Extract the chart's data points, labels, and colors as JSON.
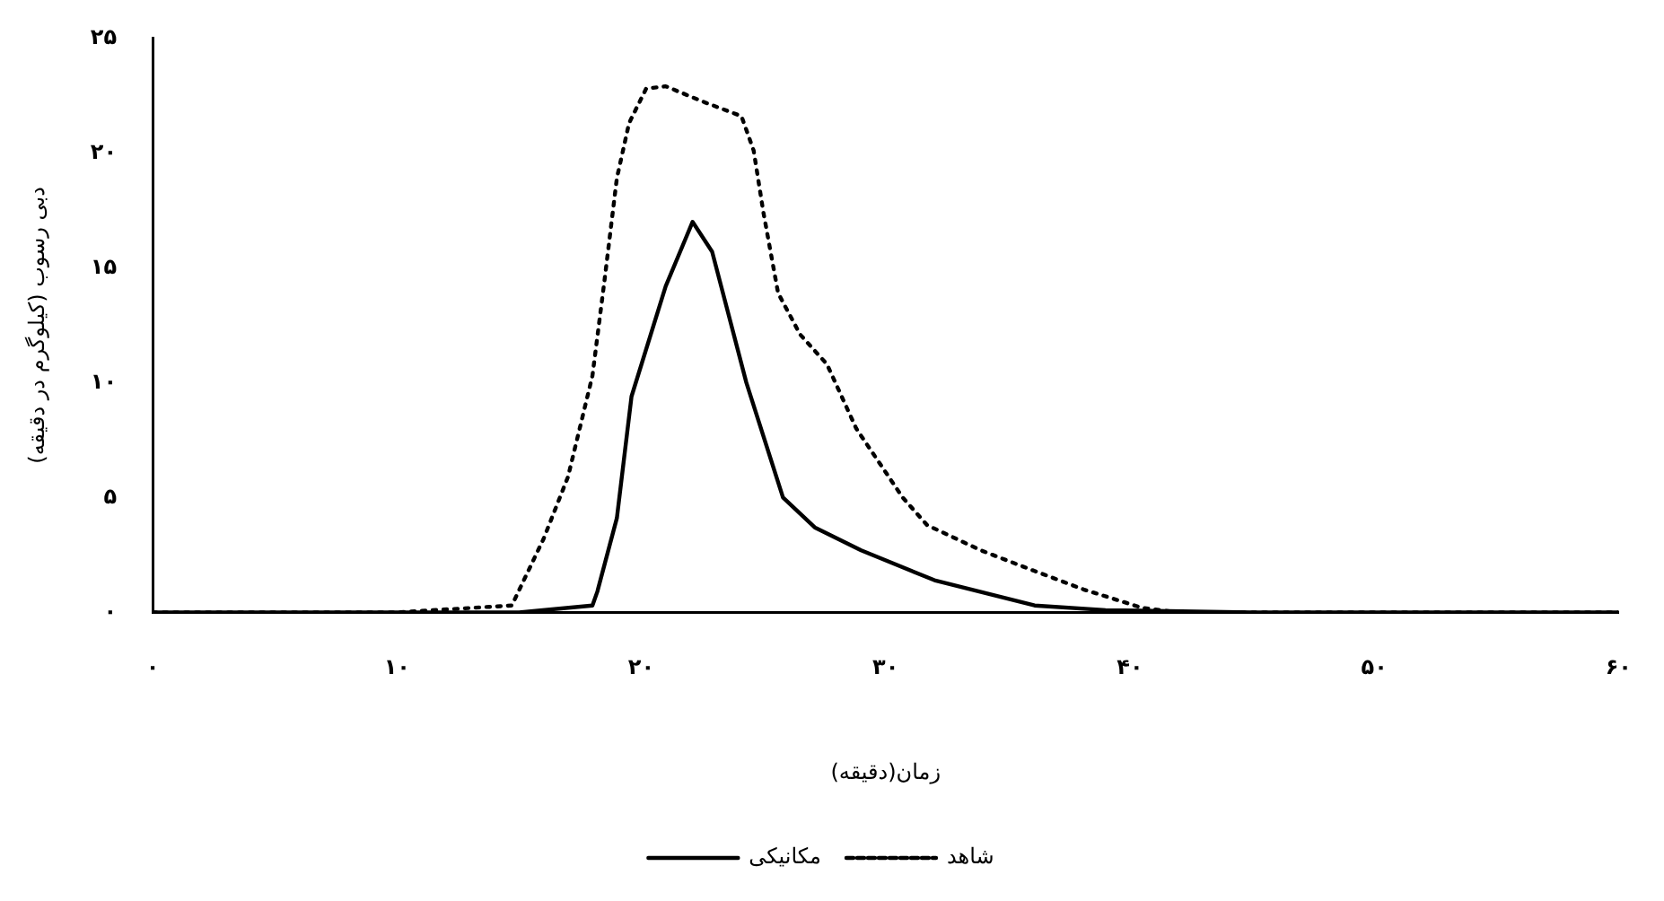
{
  "chart_data": {
    "type": "line",
    "xlabel": "زمان(دقیقه)",
    "ylabel": "دبی رسوب (کیلوگرم در دقیقه)",
    "xlim": [
      0,
      60
    ],
    "xticks": [
      {
        "value": 0,
        "label": "۰"
      },
      {
        "value": 10,
        "label": "۱۰"
      },
      {
        "value": 20,
        "label": "۲۰"
      },
      {
        "value": 30,
        "label": "۳۰"
      },
      {
        "value": 40,
        "label": "۴۰"
      },
      {
        "value": 50,
        "label": "۵۰"
      },
      {
        "value": 60,
        "label": "۶۰"
      }
    ],
    "ylim": [
      0,
      25
    ],
    "yticks": [
      {
        "value": 0,
        "label": "۰"
      },
      {
        "value": 5,
        "label": "۵"
      },
      {
        "value": 10,
        "label": "۱۰"
      },
      {
        "value": 15,
        "label": "۱۵"
      },
      {
        "value": 20,
        "label": "۲۰"
      },
      {
        "value": 25,
        "label": "۲۵"
      }
    ],
    "grid": false,
    "legend": "bottom",
    "marker": "none",
    "series": [
      {
        "name": "مکانیکی",
        "color": "#000000",
        "line_style": "solid",
        "x": [
          0,
          10,
          15,
          18,
          18.2,
          19,
          19.6,
          21,
          22.1,
          22.9,
          24.3,
          25.8,
          27.1,
          29,
          32,
          36.1,
          39,
          45,
          60
        ],
        "values": [
          0,
          0,
          0,
          0.3,
          0.9,
          4.1,
          9.4,
          14.2,
          17,
          15.7,
          10,
          5,
          3.7,
          2.7,
          1.4,
          0.3,
          0.1,
          0,
          0
        ]
      },
      {
        "name": "شاهد",
        "color": "#000000",
        "line_style": "dotted",
        "x": [
          0,
          10,
          14.7,
          16,
          17,
          18,
          18.5,
          19,
          19.5,
          20.2,
          21,
          22.6,
          24.1,
          24.6,
          25,
          25.6,
          26.5,
          27.6,
          28.8,
          30.7,
          31.7,
          33.9,
          36.1,
          38.1,
          40.5,
          42,
          50,
          60
        ],
        "values": [
          0,
          0,
          0.3,
          3.2,
          5.9,
          10.3,
          14.5,
          18.9,
          21.3,
          22.8,
          22.9,
          22.2,
          21.6,
          20.1,
          17.4,
          13.9,
          12.1,
          10.8,
          8,
          5,
          3.8,
          2.7,
          1.8,
          1,
          0.2,
          0,
          0,
          0
        ]
      }
    ]
  }
}
